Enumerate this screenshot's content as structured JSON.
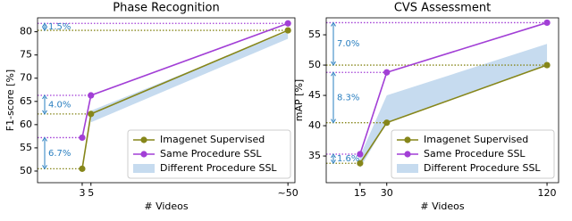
{
  "chart_data": [
    {
      "type": "line",
      "title": "Phase Recognition",
      "x_label": "# Videos",
      "y_label": "F1-score [%]",
      "x": [
        3,
        5,
        50
      ],
      "xlim": [
        -7.2,
        51.6
      ],
      "xticks": [
        3,
        5,
        {
          "value": 50,
          "label": "~50"
        }
      ],
      "ylim": [
        47.5,
        83
      ],
      "yticks": [
        50,
        55,
        60,
        65,
        70,
        75,
        80
      ],
      "series": [
        {
          "name": "Imagenet Supervised",
          "color": "#86861a",
          "values": [
            50.5,
            62.3,
            80.3
          ]
        },
        {
          "name": "Same Procedure SSL",
          "color": "#a23fd6",
          "values": [
            57.2,
            66.3,
            81.8
          ]
        }
      ],
      "band": {
        "name": "Different Procedure SSL",
        "color": "#c6dbef",
        "lower": [
          null,
          60.5,
          78.5
        ],
        "upper": [
          null,
          63,
          80
        ]
      },
      "annotations": [
        "6.7%",
        "4.0%",
        "1.5%"
      ],
      "legend": "lower right"
    },
    {
      "type": "line",
      "title": "CVS Assessment",
      "x_label": "# Videos",
      "y_label": "mAP [%]",
      "x": [
        15,
        30,
        120
      ],
      "xlim": [
        -4,
        126.5
      ],
      "xticks": [
        15,
        30,
        120
      ],
      "ylim": [
        30.6,
        57.8
      ],
      "yticks": [
        35,
        40,
        45,
        50,
        55
      ],
      "series": [
        {
          "name": "Imagenet Supervised",
          "color": "#86861a",
          "values": [
            33.8,
            40.5,
            50.0
          ]
        },
        {
          "name": "Same Procedure SSL",
          "color": "#a23fd6",
          "values": [
            35.3,
            48.8,
            57.0
          ]
        }
      ],
      "band": {
        "name": "Different Procedure SSL",
        "color": "#c6dbef",
        "lower": [
          33,
          40.5,
          50
        ],
        "upper": [
          35,
          45,
          53.5
        ]
      },
      "annotations": [
        "1.6%",
        "8.3%",
        "7.0%"
      ],
      "legend": "lower right"
    }
  ]
}
